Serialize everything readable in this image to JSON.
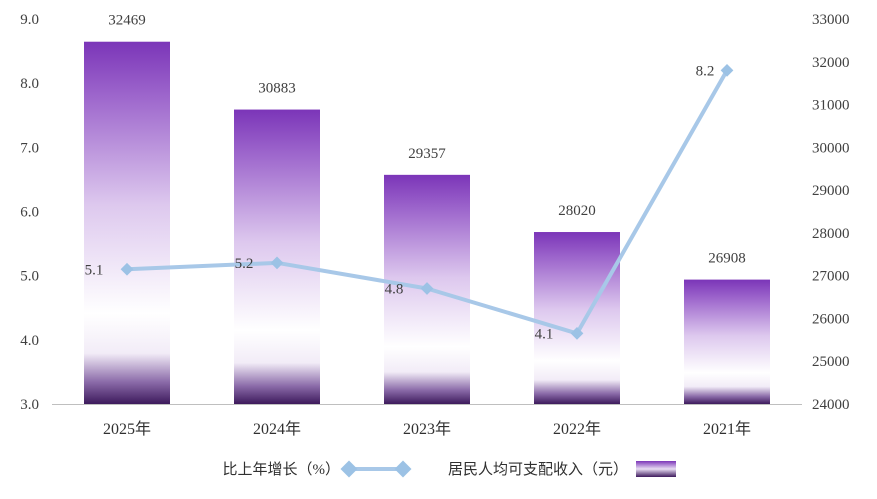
{
  "chart_data": {
    "type": "bar+line",
    "mirrored": true,
    "categories": [
      "2021年",
      "2022年",
      "2023年",
      "2024年",
      "2025年"
    ],
    "series": [
      {
        "name": "居民人均可支配收入（元）",
        "type": "bar",
        "axis": "right",
        "values": [
          26908,
          28020,
          29357,
          30883,
          32469
        ],
        "labels": [
          "26908",
          "28020",
          "29357",
          "30883",
          "32469"
        ]
      },
      {
        "name": "比上年增长（%）",
        "type": "line",
        "axis": "left",
        "values": [
          8.2,
          4.1,
          4.8,
          5.2,
          5.1
        ],
        "labels": [
          "8.2",
          "4.1",
          "4.8",
          "5.2",
          "5.1"
        ]
      }
    ],
    "y_left": {
      "ylim": [
        3.0,
        9.0
      ],
      "ticks": [
        "3.0",
        "4.0",
        "5.0",
        "6.0",
        "7.0",
        "8.0",
        "9.0"
      ]
    },
    "y_right": {
      "ylim": [
        24000,
        33000
      ],
      "ticks": [
        "24000",
        "25000",
        "26000",
        "27000",
        "28000",
        "29000",
        "30000",
        "31000",
        "32000",
        "33000"
      ]
    },
    "legend": {
      "placement": "bottom"
    },
    "grid": false,
    "colors": {
      "bar_top": "#7b35b8",
      "bar_mid": "#ffffff",
      "bar_base": "#3d1a5c",
      "line": "#a8c8e8",
      "marker": "#9cc2e5"
    }
  }
}
